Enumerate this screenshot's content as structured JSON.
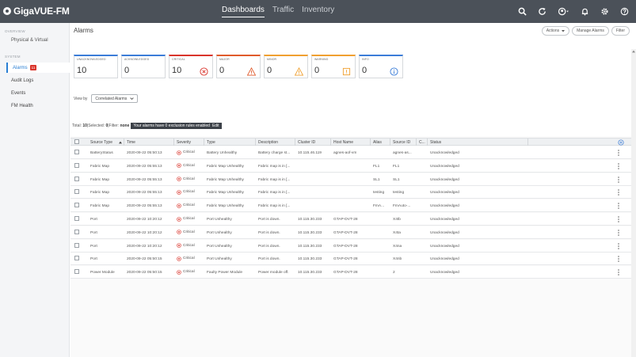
{
  "app": {
    "logo_text": "GigaVUE-FM",
    "nav": [
      "Dashboards",
      "Traffic",
      "Inventory"
    ],
    "active_nav": "Dashboards",
    "icons": [
      "search-icon",
      "refresh-icon",
      "account-icon",
      "bell-icon",
      "gear-icon",
      "help-icon"
    ]
  },
  "sidebar": {
    "overview_label": "OVERVIEW",
    "physical_virtual": "Physical & Virtual",
    "system_label": "SYSTEM",
    "items": [
      {
        "label": "Alarms",
        "badge": "11",
        "active": true
      },
      {
        "label": "Audit Logs"
      },
      {
        "label": "Events"
      },
      {
        "label": "FM Health"
      }
    ]
  },
  "header": {
    "title": "Alarms",
    "actions_label": "Actions",
    "manage_label": "Manage Alarms",
    "filter_label": "Filter"
  },
  "cards": [
    {
      "label": "UNACKNOWLEDGED",
      "value": "10",
      "color": "#3b7dd8",
      "icon": ""
    },
    {
      "label": "ACKNOWLEDGED",
      "value": "0",
      "color": "#3b7dd8",
      "icon": ""
    },
    {
      "label": "CRITICAL",
      "value": "10",
      "color": "#d9342b",
      "icon": "critical-icon"
    },
    {
      "label": "MAJOR",
      "value": "0",
      "color": "#e05a2b",
      "icon": "major-icon"
    },
    {
      "label": "MINOR",
      "value": "0",
      "color": "#f0a030",
      "icon": "minor-icon"
    },
    {
      "label": "WARNING",
      "value": "0",
      "color": "#f0a030",
      "icon": "warning-icon"
    },
    {
      "label": "INFO",
      "value": "0",
      "color": "#3b7dd8",
      "icon": "info-icon"
    }
  ],
  "viewby": {
    "label": "View by",
    "selected": "Correlated Alarms"
  },
  "totals": {
    "total_label": "Total:",
    "total": "10",
    "selected_label": "|Selected:",
    "selected": "0",
    "filter_label": "|Filter:",
    "filter": "none",
    "tip": "Your alarms have 0 exclusion rules enabled",
    "edit": "Edit"
  },
  "table": {
    "columns": [
      "Source Type",
      "Time",
      "Severity",
      "Type",
      "Description",
      "Cluster ID",
      "Host Name",
      "Alias",
      "Source ID",
      "C...",
      "Status"
    ],
    "rows": [
      [
        "BatteryStatus",
        "2020-09-22 05:50:13",
        "Critical",
        "Battery Unhealthy",
        "Battery charge st...",
        "10.115.46.119",
        "agnes-aof-vm",
        "",
        "agnes-as...",
        "",
        "Unacknowledged"
      ],
      [
        "Fabric Map",
        "2020-09-22 05:55:13",
        "Critical",
        "Fabric Map Unhealthy",
        "Fabric map is in [...",
        "",
        "",
        "FL1",
        "FL1",
        "",
        "Unacknowledged"
      ],
      [
        "Fabric Map",
        "2020-09-22 05:55:13",
        "Critical",
        "Fabric Map Unhealthy",
        "Fabric map is in [...",
        "",
        "",
        "SL1",
        "SL1",
        "",
        "Unacknowledged"
      ],
      [
        "Fabric Map",
        "2020-09-22 05:55:13",
        "Critical",
        "Fabric Map Unhealthy",
        "Fabric map is in [...",
        "",
        "",
        "testing",
        "testing",
        "",
        "Unacknowledged"
      ],
      [
        "Fabric Map",
        "2020-09-22 05:55:13",
        "Critical",
        "Fabric Map Unhealthy",
        "Fabric map is in [...",
        "",
        "",
        "FmA...",
        "FmAuto-...",
        "",
        "Unacknowledged"
      ],
      [
        "Port",
        "2020-09-22 10:20:12",
        "Critical",
        "Port Unhealthy",
        "Port is down.",
        "10.115.30.233",
        "GTAP-DVT-28",
        "",
        "X4tb",
        "",
        "Unacknowledged"
      ],
      [
        "Port",
        "2020-09-22 10:20:12",
        "Critical",
        "Port Unhealthy",
        "Port is down.",
        "10.115.30.233",
        "GTAP-DVT-28",
        "",
        "X4ta",
        "",
        "Unacknowledged"
      ],
      [
        "Port",
        "2020-09-22 10:20:12",
        "Critical",
        "Port Unhealthy",
        "Port is down.",
        "10.115.30.233",
        "GTAP-DVT-28",
        "",
        "X4na",
        "",
        "Unacknowledged"
      ],
      [
        "Port",
        "2020-09-22 05:50:15",
        "Critical",
        "Port Unhealthy",
        "Port is down.",
        "10.115.30.233",
        "GTAP-DVT-28",
        "",
        "X4nb",
        "",
        "Unacknowledged"
      ],
      [
        "Power Module",
        "2020-09-22 05:50:15",
        "Critical",
        "Faulty Power Module",
        "Power module off.",
        "10.115.30.233",
        "GTAP-DVT-28",
        "",
        "2",
        "",
        "Unacknowledged"
      ]
    ]
  }
}
